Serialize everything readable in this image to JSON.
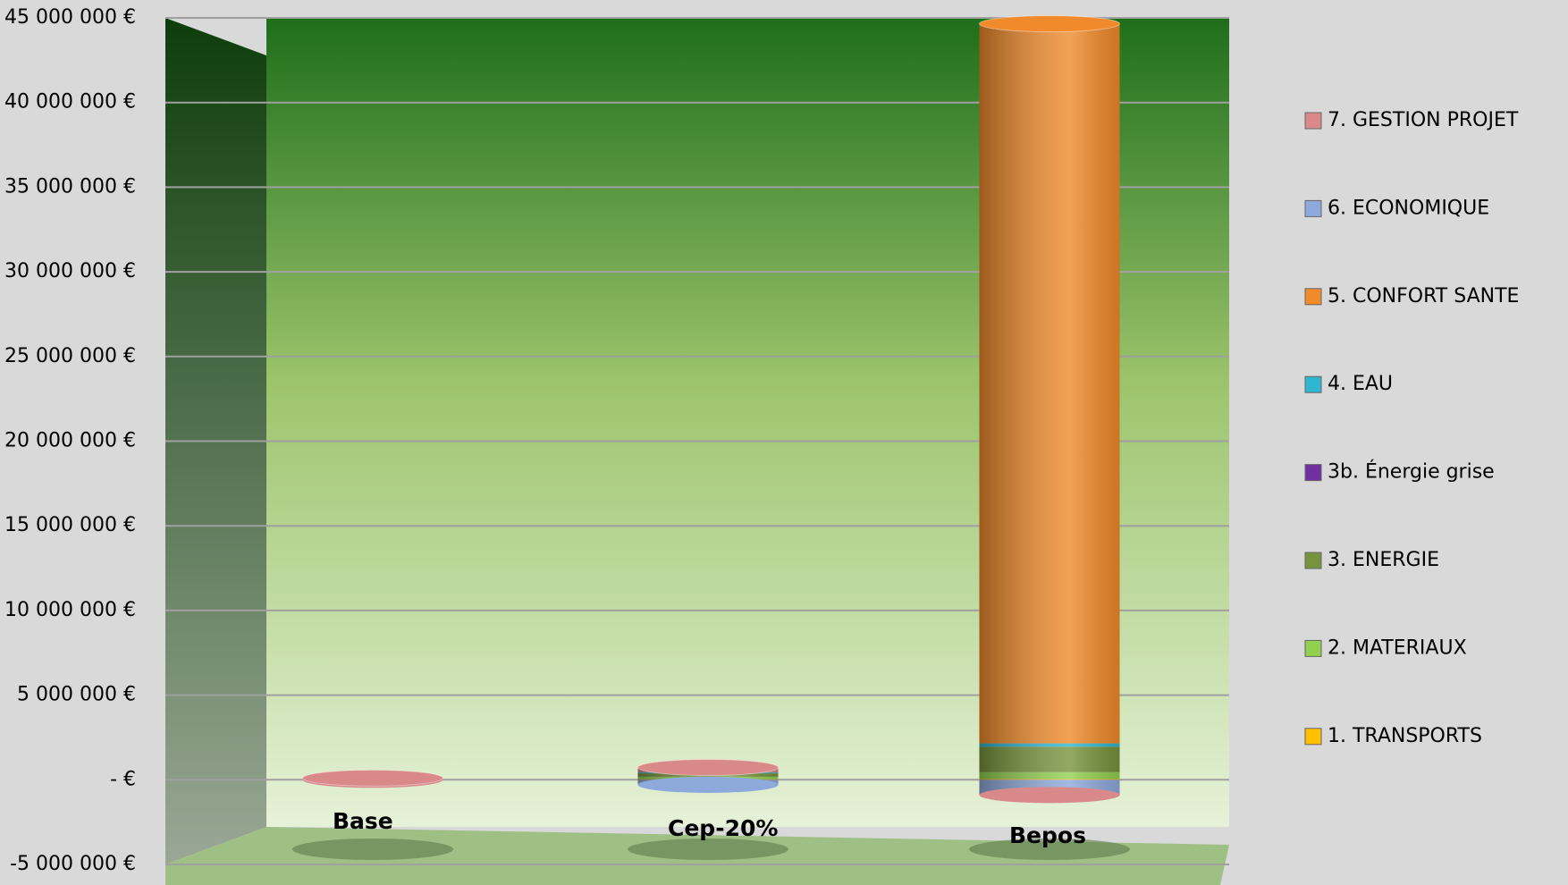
{
  "chart_data": {
    "type": "bar",
    "stacked": true,
    "categories": [
      "Base",
      "Cep-20%",
      "Bepos"
    ],
    "series": [
      {
        "name": "1. TRANSPORTS",
        "color": "#ffc000",
        "values": [
          0,
          30000,
          50000
        ]
      },
      {
        "name": "2. MATERIAUX",
        "color": "#92d050",
        "values": [
          0,
          150000,
          400000
        ]
      },
      {
        "name": "3. ENERGIE",
        "color": "#77933c",
        "values": [
          0,
          200000,
          1500000
        ]
      },
      {
        "name": "3b. Énergie grise",
        "color": "#7030a0",
        "values": [
          0,
          0,
          0
        ]
      },
      {
        "name": "4. EAU",
        "color": "#31b6cf",
        "values": [
          0,
          50000,
          200000
        ]
      },
      {
        "name": "5. CONFORT SANTE",
        "color": "#f08a2a",
        "values": [
          0,
          0,
          42500000
        ]
      },
      {
        "name": "6. ECONOMIQUE",
        "color": "#8ea9db",
        "values": [
          0,
          -300000,
          -800000
        ]
      },
      {
        "name": "7. GESTION PROJET",
        "color": "#d9898a",
        "values": [
          100000,
          300000,
          -100000
        ]
      }
    ],
    "ylim": [
      -5000000,
      45000000
    ],
    "yticks": [
      {
        "value": -5000000,
        "label": "-5 000 000 €"
      },
      {
        "value": 0,
        "label": "-  €"
      },
      {
        "value": 5000000,
        "label": "5 000 000 €"
      },
      {
        "value": 10000000,
        "label": "10 000 000 €"
      },
      {
        "value": 15000000,
        "label": "15 000 000 €"
      },
      {
        "value": 20000000,
        "label": "20 000 000 €"
      },
      {
        "value": 25000000,
        "label": "25 000 000 €"
      },
      {
        "value": 30000000,
        "label": "30 000 000 €"
      },
      {
        "value": 35000000,
        "label": "35 000 000 €"
      },
      {
        "value": 40000000,
        "label": "40 000 000 €"
      },
      {
        "value": 45000000,
        "label": "45 000 000 €"
      }
    ],
    "grid": true,
    "legend": "right"
  }
}
